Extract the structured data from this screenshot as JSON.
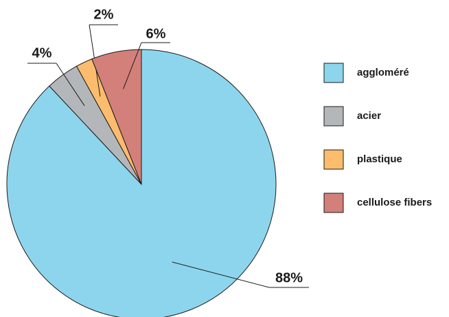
{
  "chart_data": {
    "type": "pie",
    "categories": [
      "aggloméré",
      "acier",
      "plastique",
      "cellulose fibers"
    ],
    "values": [
      88,
      4,
      2,
      6
    ],
    "value_labels": [
      "88%",
      "4%",
      "2%",
      "6%"
    ],
    "colors": [
      "#8dd5ed",
      "#b4b7b9",
      "#fbbc6e",
      "#d3807a"
    ],
    "legend": "right"
  }
}
